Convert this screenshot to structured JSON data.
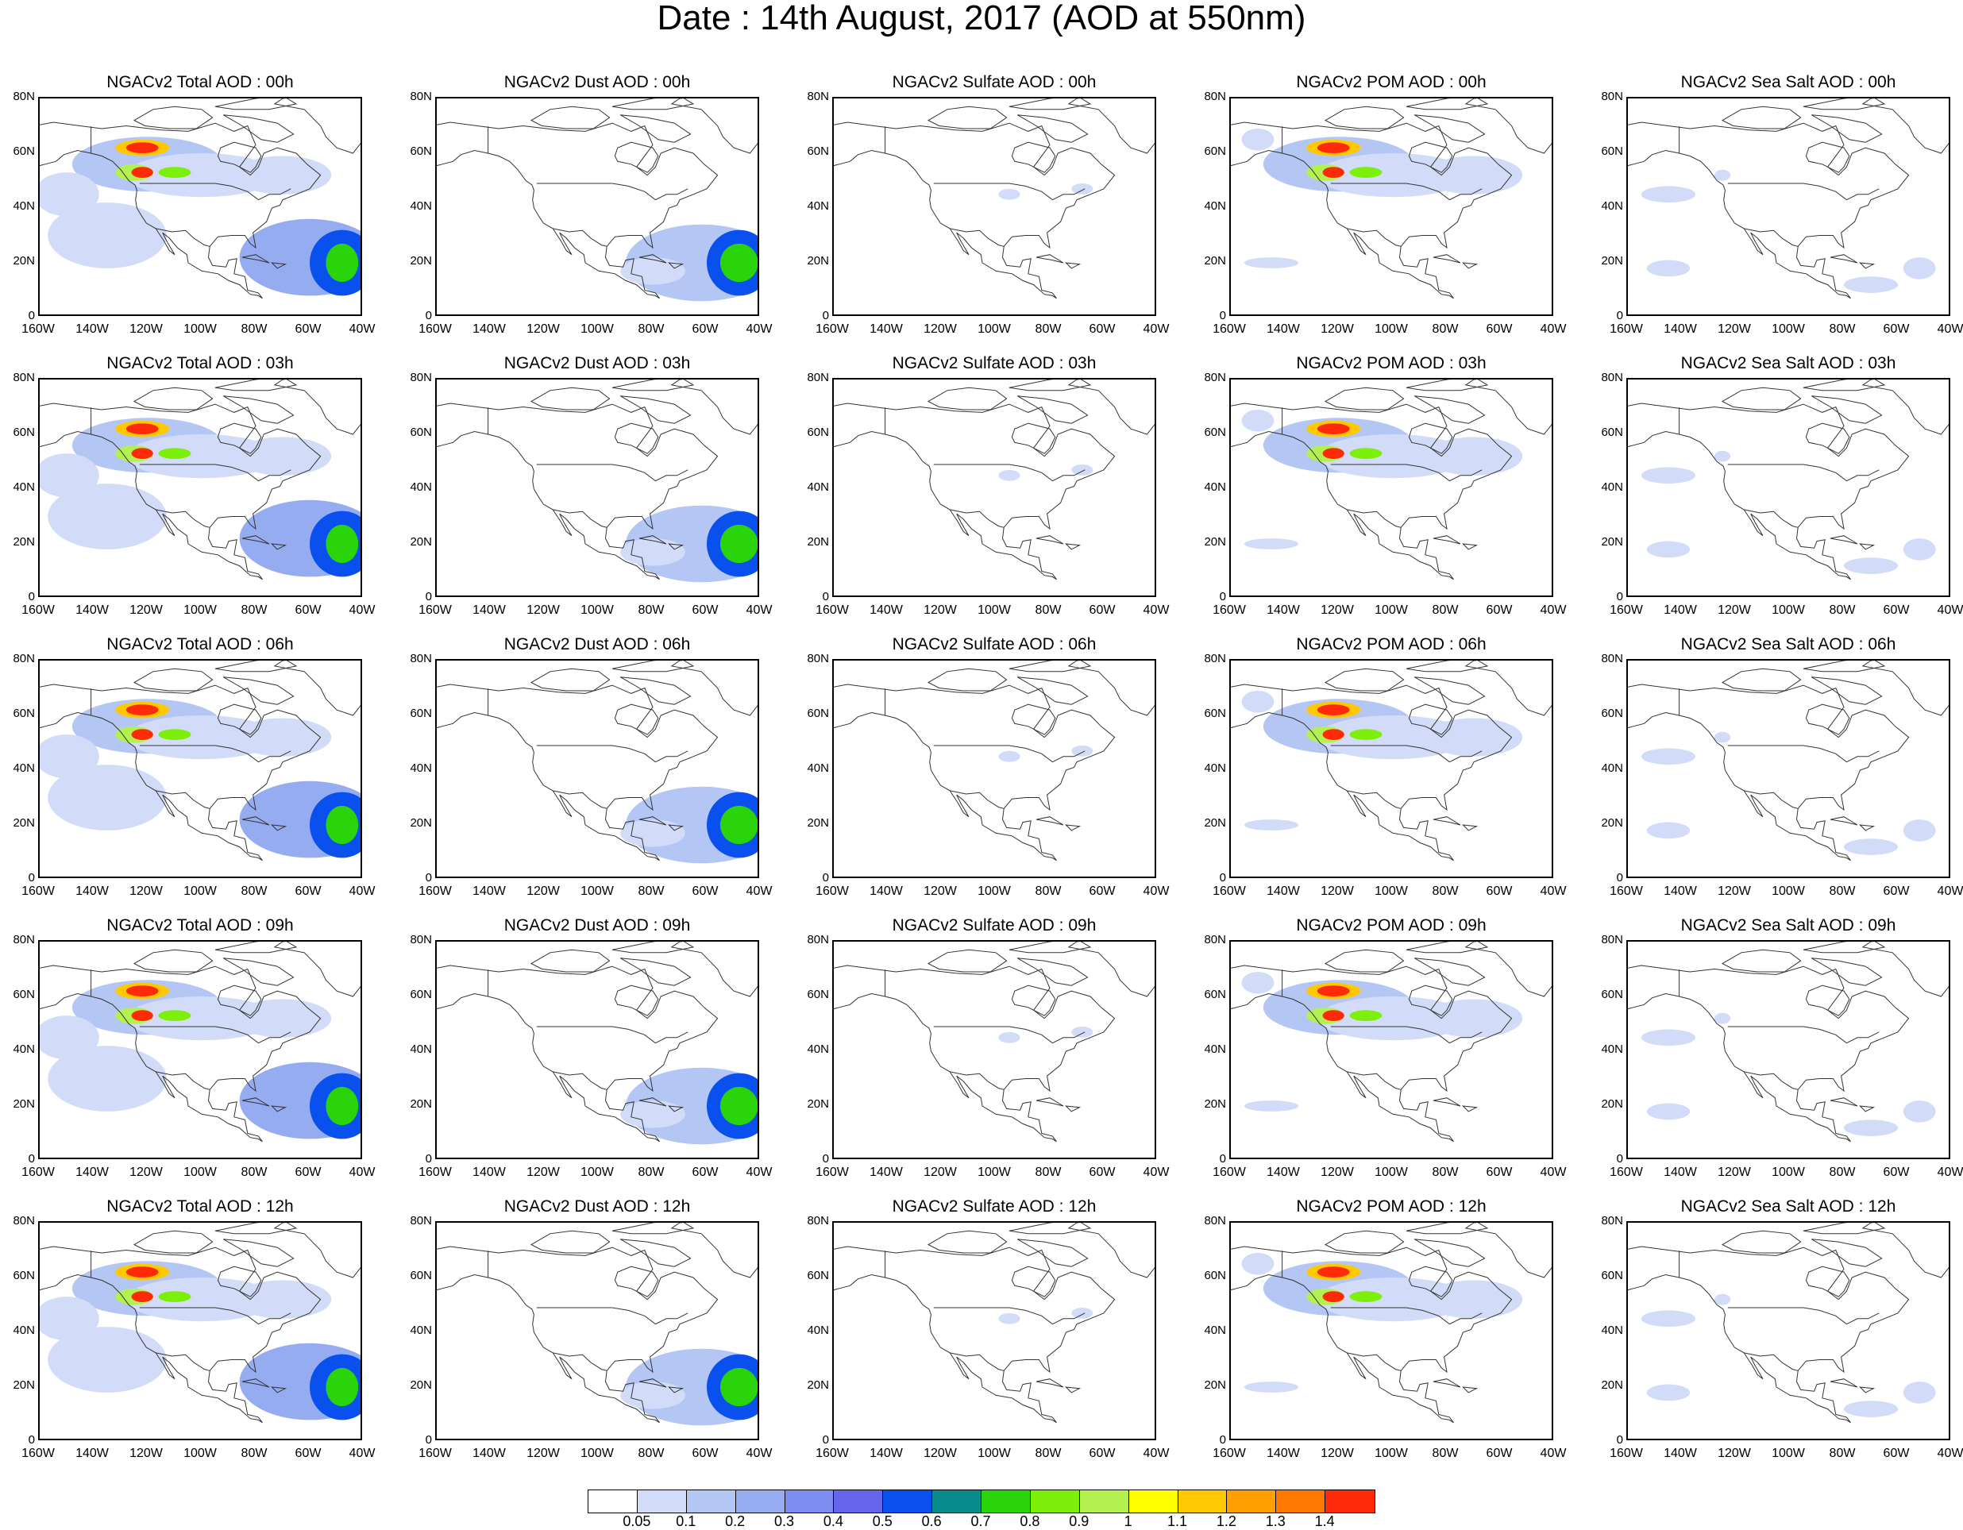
{
  "title": "Date : 14th August, 2017 (AOD at 550nm)",
  "lat_ticks": [
    "80N",
    "60N",
    "40N",
    "20N",
    "0"
  ],
  "lon_ticks": [
    "160W",
    "140W",
    "120W",
    "100W",
    "80W",
    "60W",
    "40W"
  ],
  "panels": [
    [
      "NGACv2 Total AOD : 00h",
      "NGACv2 Dust AOD : 00h",
      "NGACv2 Sulfate AOD : 00h",
      "NGACv2 POM AOD : 00h",
      "NGACv2 Sea Salt AOD : 00h"
    ],
    [
      "NGACv2 Total AOD : 03h",
      "NGACv2 Dust AOD : 03h",
      "NGACv2 Sulfate AOD : 03h",
      "NGACv2 POM AOD : 03h",
      "NGACv2 Sea Salt AOD : 03h"
    ],
    [
      "NGACv2 Total AOD : 06h",
      "NGACv2 Dust AOD : 06h",
      "NGACv2 Sulfate AOD : 06h",
      "NGACv2 POM AOD : 06h",
      "NGACv2 Sea Salt AOD : 06h"
    ],
    [
      "NGACv2 Total AOD : 09h",
      "NGACv2 Dust AOD : 09h",
      "NGACv2 Sulfate AOD : 09h",
      "NGACv2 POM AOD : 09h",
      "NGACv2 Sea Salt  AOD : 09h"
    ],
    [
      "NGACv2 Total AOD  : 12h",
      "NGACv2 Dust AOD : 12h",
      "NGACv2 Sulfate AOD : 12h",
      "NGACv2 POM  AOD : 12h",
      "NGACv2 Sea Salt  AOD : 12h"
    ]
  ],
  "colorbar": {
    "colors": [
      "#ffffff",
      "#d2dcf8",
      "#b4c6f4",
      "#96acf0",
      "#7e8ef0",
      "#6464ec",
      "#0a50ee",
      "#0a8c8c",
      "#2ad40a",
      "#7cf00a",
      "#b4f050",
      "#ffff00",
      "#ffc800",
      "#ffa000",
      "#ff7800",
      "#ff2a0a"
    ],
    "labels": [
      "0.05",
      "0.1",
      "0.2",
      "0.3",
      "0.4",
      "0.5",
      "0.6",
      "0.7",
      "0.8",
      "0.9",
      "1",
      "1.1",
      "1.2",
      "1.3",
      "1.4"
    ]
  }
}
